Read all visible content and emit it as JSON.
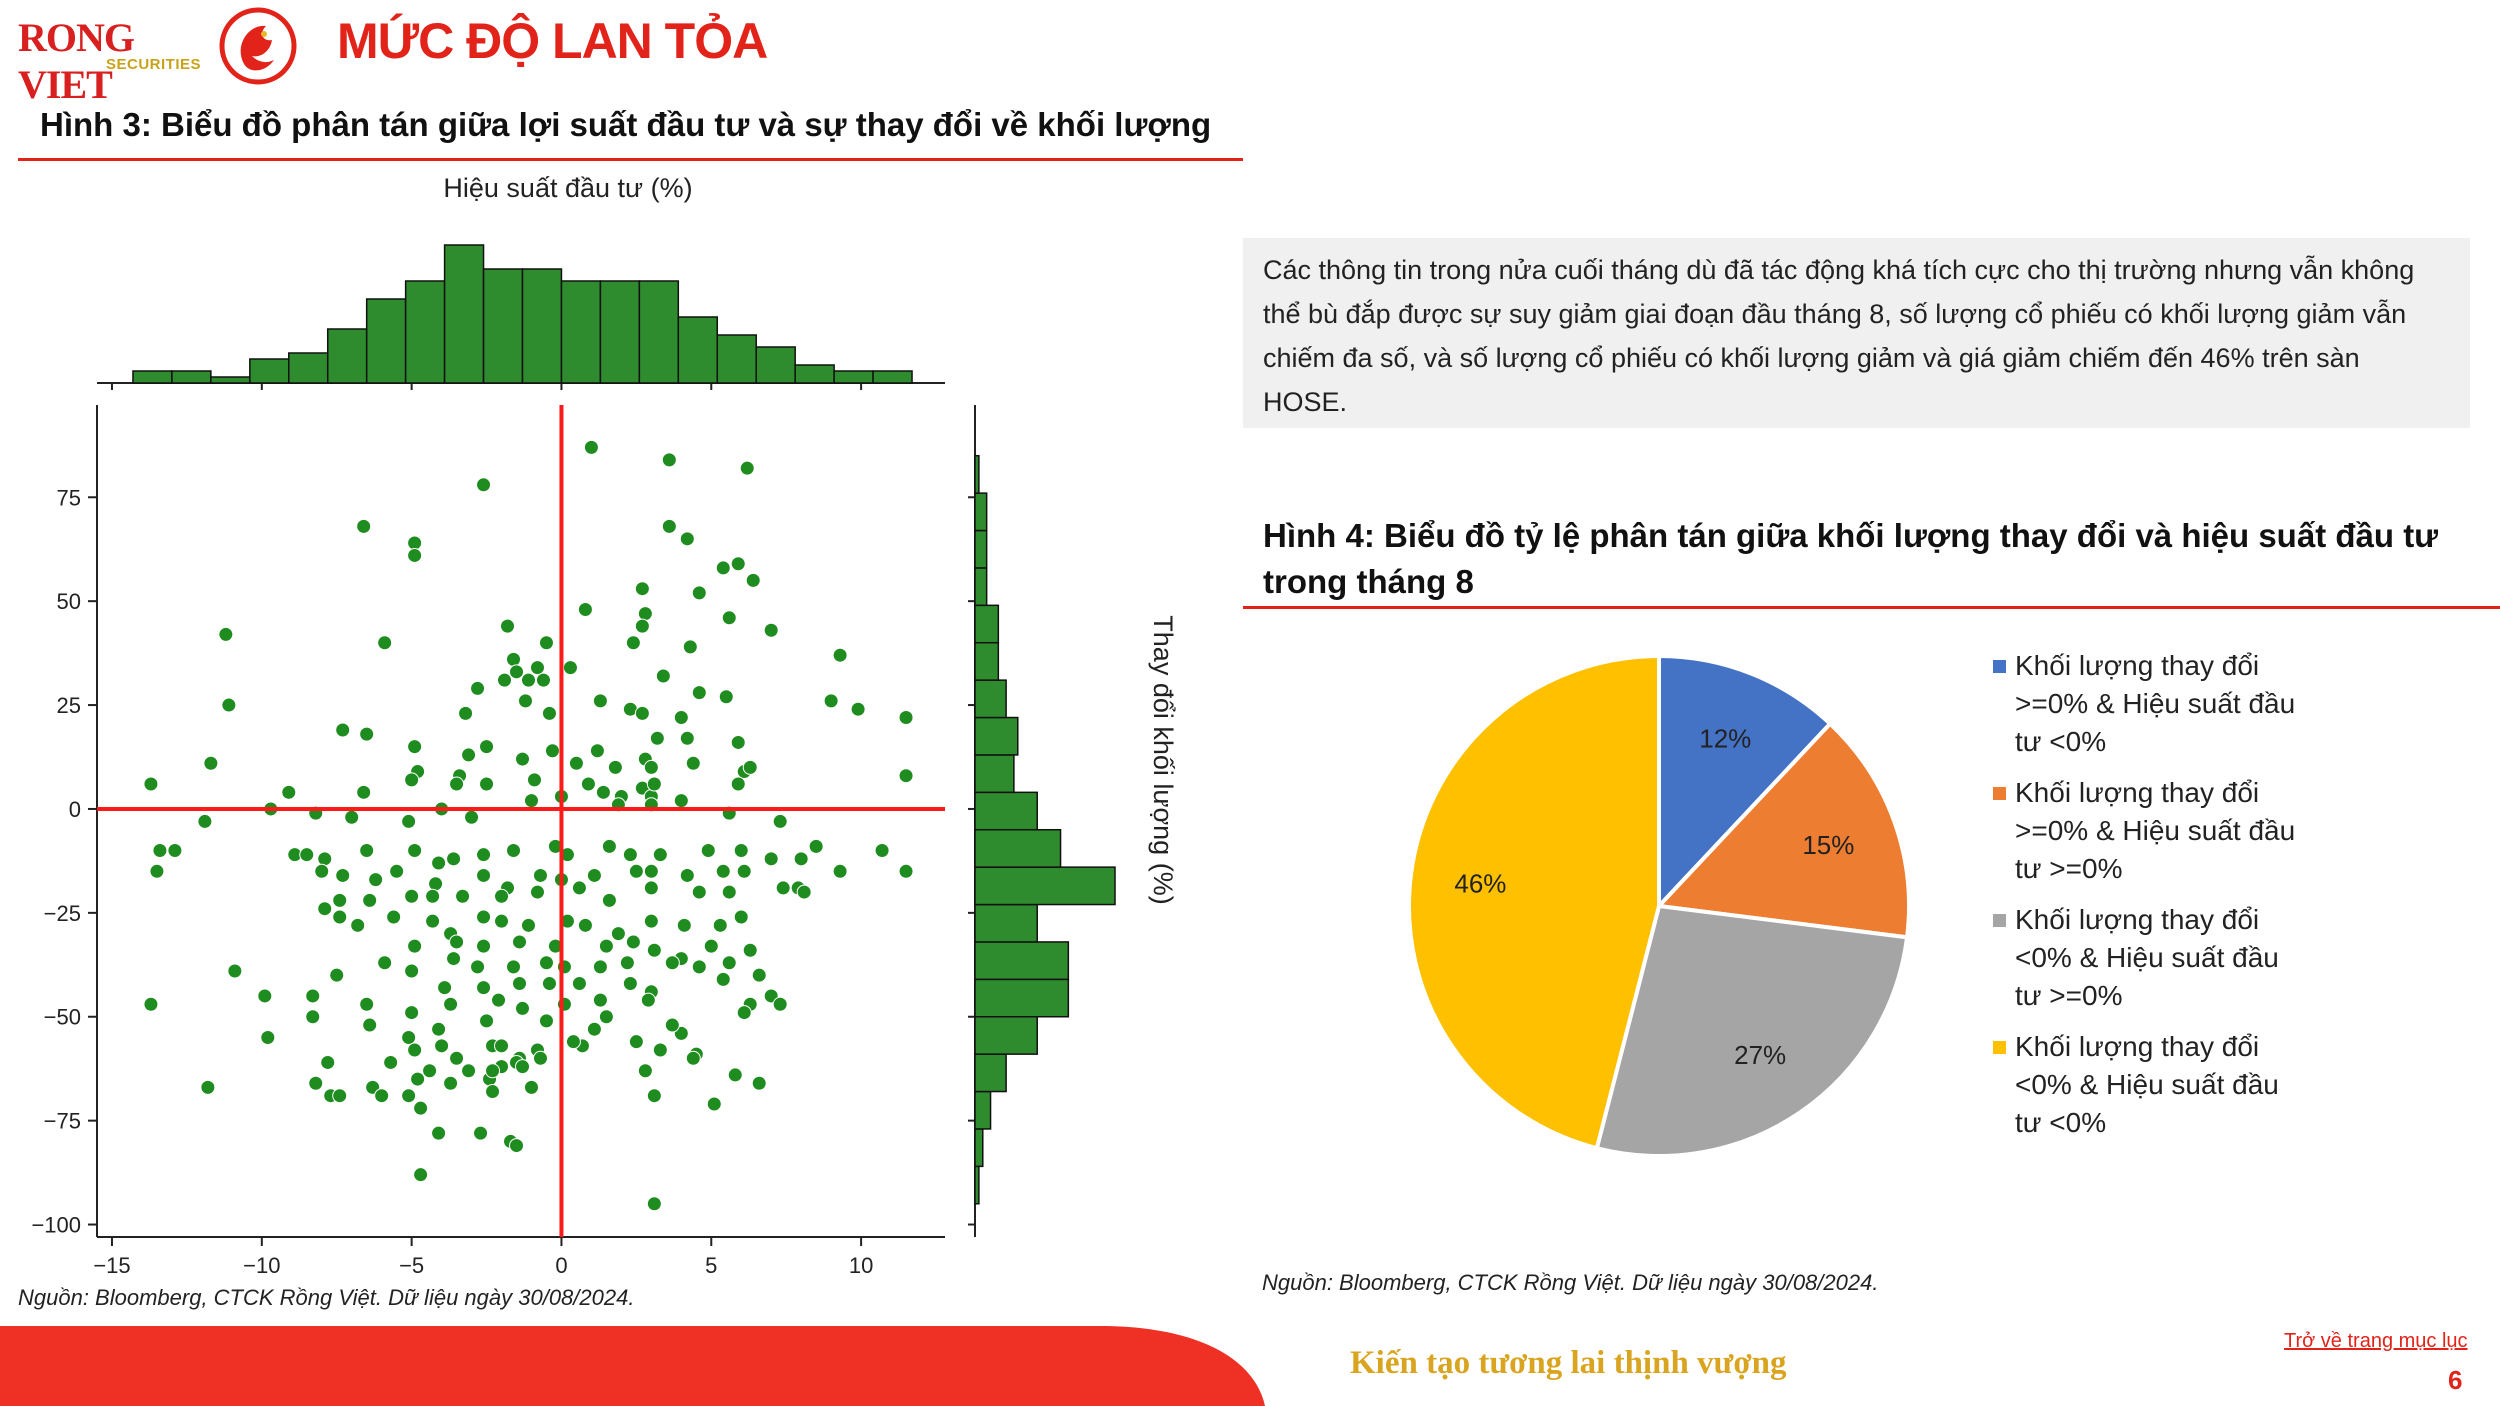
{
  "header": {
    "logo_name": "RONG VIET",
    "logo_sub": "SECURITIES",
    "title": "MỨC ĐỘ LAN TỎA"
  },
  "figure3": {
    "title": "Hình 3: Biểu đồ phân tán giữa lợi suất đầu tư và sự thay đổi về khối lượng",
    "source": "Nguồn: Bloomberg, CTCK Rồng Việt. Dữ liệu ngày 30/08/2024."
  },
  "info_text": "Các thông tin trong nửa cuối tháng dù đã tác động khá tích cực cho thị trường nhưng vẫn không thể bù đắp được sự suy giảm giai đoạn đầu tháng 8, số lượng cổ phiếu có khối lượng giảm vẫn chiếm đa số, và số lượng cổ phiếu có khối lượng giảm và giá giảm chiếm đến 46% trên sàn HOSE.",
  "figure4": {
    "title": "Hình 4: Biểu đồ tỷ lệ phân tán giữa khối lượng thay đổi và hiệu suất đầu tư trong tháng 8",
    "source": "Nguồn: Bloomberg, CTCK Rồng Việt. Dữ liệu ngày 30/08/2024."
  },
  "footer": {
    "slogan": "Kiến tạo tương lai thịnh vượng",
    "back_link": "Trở về trang mục lục",
    "page_number": "6"
  },
  "chart_data": [
    {
      "type": "scatter",
      "title": "",
      "xlabel": "Hiệu suất đầu tư (%)",
      "ylabel": "Thay đổi khối lượng (%)",
      "xlim": [
        -15.5,
        12.8
      ],
      "ylim": [
        -103,
        96
      ],
      "xticks": [
        -15,
        -10,
        -5,
        0,
        5,
        10
      ],
      "yticks": [
        75,
        50,
        25,
        0,
        -25,
        -50,
        -75,
        -100
      ],
      "reference_lines": {
        "x": 0,
        "y": 0,
        "color": "#ff1a1a"
      },
      "point_color": "#1e8c1e",
      "points": [
        [
          1.0,
          87
        ],
        [
          -2.6,
          78
        ],
        [
          3.6,
          84
        ],
        [
          6.2,
          82
        ],
        [
          -6.6,
          68
        ],
        [
          -4.9,
          64
        ],
        [
          -4.9,
          61
        ],
        [
          3.6,
          68
        ],
        [
          4.2,
          65
        ],
        [
          5.9,
          59
        ],
        [
          5.4,
          58
        ],
        [
          6.4,
          55
        ],
        [
          2.7,
          53
        ],
        [
          4.6,
          52
        ],
        [
          0.8,
          48
        ],
        [
          2.8,
          47
        ],
        [
          5.6,
          46
        ],
        [
          -11.2,
          42
        ],
        [
          -1.8,
          44
        ],
        [
          2.7,
          44
        ],
        [
          -5.9,
          40
        ],
        [
          -0.5,
          40
        ],
        [
          2.4,
          40
        ],
        [
          4.3,
          39
        ],
        [
          7.0,
          43
        ],
        [
          -1.6,
          36
        ],
        [
          -1.5,
          33
        ],
        [
          -0.8,
          34
        ],
        [
          0.3,
          34
        ],
        [
          -1.9,
          31
        ],
        [
          -1.1,
          31
        ],
        [
          -2.8,
          29
        ],
        [
          -0.6,
          31
        ],
        [
          3.4,
          32
        ],
        [
          4.6,
          28
        ],
        [
          -11.1,
          25
        ],
        [
          -1.2,
          26
        ],
        [
          1.3,
          26
        ],
        [
          2.3,
          24
        ],
        [
          5.5,
          27
        ],
        [
          9.0,
          26
        ],
        [
          9.3,
          37
        ],
        [
          9.9,
          24
        ],
        [
          11.5,
          22
        ],
        [
          -3.2,
          23
        ],
        [
          -0.4,
          23
        ],
        [
          2.7,
          23
        ],
        [
          4.0,
          22
        ],
        [
          -7.3,
          19
        ],
        [
          -6.5,
          18
        ],
        [
          -4.9,
          15
        ],
        [
          -2.5,
          15
        ],
        [
          -3.1,
          13
        ],
        [
          -0.3,
          14
        ],
        [
          1.2,
          14
        ],
        [
          3.2,
          17
        ],
        [
          2.8,
          12
        ],
        [
          4.2,
          17
        ],
        [
          5.9,
          16
        ],
        [
          -11.7,
          11
        ],
        [
          -13.7,
          6
        ],
        [
          -4.8,
          9
        ],
        [
          -3.4,
          8
        ],
        [
          -1.3,
          12
        ],
        [
          0.5,
          11
        ],
        [
          1.8,
          10
        ],
        [
          3.0,
          10
        ],
        [
          4.4,
          11
        ],
        [
          6.1,
          9
        ],
        [
          6.3,
          10
        ],
        [
          -9.1,
          4
        ],
        [
          -6.6,
          4
        ],
        [
          -5.0,
          7
        ],
        [
          -3.5,
          6
        ],
        [
          -2.5,
          6
        ],
        [
          -0.9,
          7
        ],
        [
          0.9,
          6
        ],
        [
          1.4,
          4
        ],
        [
          2.0,
          3
        ],
        [
          2.7,
          5
        ],
        [
          3.0,
          3
        ],
        [
          3.1,
          6
        ],
        [
          5.9,
          6
        ],
        [
          11.5,
          8
        ],
        [
          -9.7,
          0
        ],
        [
          -8.2,
          -1
        ],
        [
          -7.0,
          -2
        ],
        [
          -5.1,
          -3
        ],
        [
          -4.0,
          0
        ],
        [
          -3.0,
          -2
        ],
        [
          -1.0,
          2
        ],
        [
          0.0,
          3
        ],
        [
          1.9,
          1
        ],
        [
          3.0,
          1
        ],
        [
          4.0,
          2
        ],
        [
          5.6,
          -1
        ],
        [
          7.3,
          -3
        ],
        [
          -11.9,
          -3
        ],
        [
          -12.9,
          -10
        ],
        [
          -13.4,
          -10
        ],
        [
          -13.5,
          -15
        ],
        [
          -8.9,
          -11
        ],
        [
          -8.5,
          -11
        ],
        [
          -7.9,
          -12
        ],
        [
          -6.5,
          -10
        ],
        [
          -4.9,
          -10
        ],
        [
          -4.1,
          -13
        ],
        [
          -3.6,
          -12
        ],
        [
          -2.6,
          -11
        ],
        [
          -1.6,
          -10
        ],
        [
          -0.2,
          -9
        ],
        [
          0.2,
          -11
        ],
        [
          1.6,
          -9
        ],
        [
          2.3,
          -11
        ],
        [
          3.3,
          -11
        ],
        [
          4.9,
          -10
        ],
        [
          6.0,
          -10
        ],
        [
          8.0,
          -12
        ],
        [
          8.5,
          -9
        ],
        [
          10.7,
          -10
        ],
        [
          -8.0,
          -15
        ],
        [
          -7.3,
          -16
        ],
        [
          -6.2,
          -17
        ],
        [
          -5.5,
          -15
        ],
        [
          -4.2,
          -18
        ],
        [
          -2.6,
          -16
        ],
        [
          -1.8,
          -19
        ],
        [
          -0.7,
          -16
        ],
        [
          0.0,
          -17
        ],
        [
          1.1,
          -16
        ],
        [
          2.5,
          -15
        ],
        [
          3.0,
          -15
        ],
        [
          4.2,
          -16
        ],
        [
          5.4,
          -15
        ],
        [
          6.1,
          -15
        ],
        [
          7.0,
          -12
        ],
        [
          -7.4,
          -22
        ],
        [
          -6.4,
          -22
        ],
        [
          -5.0,
          -21
        ],
        [
          -4.3,
          -21
        ],
        [
          -3.3,
          -21
        ],
        [
          -2.0,
          -21
        ],
        [
          -0.8,
          -20
        ],
        [
          0.6,
          -19
        ],
        [
          1.6,
          -22
        ],
        [
          3.0,
          -19
        ],
        [
          4.6,
          -20
        ],
        [
          5.6,
          -20
        ],
        [
          7.4,
          -19
        ],
        [
          7.9,
          -19
        ],
        [
          8.1,
          -20
        ],
        [
          9.3,
          -15
        ],
        [
          11.5,
          -15
        ],
        [
          -7.9,
          -24
        ],
        [
          -7.4,
          -26
        ],
        [
          -6.8,
          -28
        ],
        [
          -5.6,
          -26
        ],
        [
          -4.3,
          -27
        ],
        [
          -3.7,
          -30
        ],
        [
          -2.6,
          -26
        ],
        [
          -2.0,
          -27
        ],
        [
          -1.1,
          -28
        ],
        [
          0.2,
          -27
        ],
        [
          0.8,
          -28
        ],
        [
          1.9,
          -30
        ],
        [
          3.0,
          -27
        ],
        [
          4.1,
          -28
        ],
        [
          5.3,
          -28
        ],
        [
          6.0,
          -26
        ],
        [
          -4.9,
          -33
        ],
        [
          -3.5,
          -32
        ],
        [
          -2.6,
          -33
        ],
        [
          -1.4,
          -32
        ],
        [
          -0.2,
          -33
        ],
        [
          1.5,
          -33
        ],
        [
          2.4,
          -32
        ],
        [
          3.1,
          -34
        ],
        [
          4.0,
          -36
        ],
        [
          5.0,
          -33
        ],
        [
          5.6,
          -37
        ],
        [
          6.3,
          -34
        ],
        [
          -10.9,
          -39
        ],
        [
          -7.5,
          -40
        ],
        [
          -5.9,
          -37
        ],
        [
          -5.0,
          -39
        ],
        [
          -3.6,
          -36
        ],
        [
          -2.8,
          -38
        ],
        [
          -1.6,
          -38
        ],
        [
          -0.5,
          -37
        ],
        [
          0.1,
          -38
        ],
        [
          1.3,
          -38
        ],
        [
          2.2,
          -37
        ],
        [
          3.7,
          -37
        ],
        [
          4.6,
          -38
        ],
        [
          -3.9,
          -43
        ],
        [
          -2.6,
          -43
        ],
        [
          -1.4,
          -42
        ],
        [
          -0.4,
          -42
        ],
        [
          0.6,
          -42
        ],
        [
          2.3,
          -42
        ],
        [
          3.0,
          -44
        ],
        [
          5.4,
          -41
        ],
        [
          6.6,
          -40
        ],
        [
          -9.9,
          -45
        ],
        [
          -8.3,
          -45
        ],
        [
          -6.5,
          -47
        ],
        [
          -5.0,
          -49
        ],
        [
          -3.7,
          -47
        ],
        [
          -2.1,
          -46
        ],
        [
          -1.3,
          -48
        ],
        [
          0.1,
          -47
        ],
        [
          1.3,
          -46
        ],
        [
          2.9,
          -46
        ],
        [
          6.3,
          -47
        ],
        [
          7.0,
          -45
        ],
        [
          7.3,
          -47
        ],
        [
          -4.1,
          -53
        ],
        [
          -2.5,
          -51
        ],
        [
          -0.5,
          -51
        ],
        [
          1.5,
          -50
        ],
        [
          4.0,
          -54
        ],
        [
          6.1,
          -49
        ],
        [
          -13.7,
          -47
        ],
        [
          -9.8,
          -55
        ],
        [
          -6.4,
          -52
        ],
        [
          -5.1,
          -55
        ],
        [
          -4.0,
          -57
        ],
        [
          -2.3,
          -57
        ],
        [
          -1.4,
          -60
        ],
        [
          0.7,
          -57
        ],
        [
          2.5,
          -56
        ],
        [
          3.3,
          -58
        ],
        [
          3.7,
          -52
        ],
        [
          4.5,
          -59
        ],
        [
          -4.9,
          -58
        ],
        [
          -3.5,
          -60
        ],
        [
          -2.0,
          -57
        ],
        [
          -1.5,
          -61
        ],
        [
          -0.8,
          -58
        ],
        [
          0.4,
          -56
        ],
        [
          1.1,
          -53
        ],
        [
          2.8,
          -63
        ],
        [
          -5.7,
          -61
        ],
        [
          -4.4,
          -63
        ],
        [
          -3.1,
          -63
        ],
        [
          -2.0,
          -62
        ],
        [
          -1.3,
          -62
        ],
        [
          -0.7,
          -60
        ],
        [
          -7.8,
          -61
        ],
        [
          -6.3,
          -67
        ],
        [
          -4.8,
          -65
        ],
        [
          -3.7,
          -66
        ],
        [
          -2.4,
          -65
        ],
        [
          -2.3,
          -63
        ],
        [
          4.4,
          -60
        ],
        [
          5.8,
          -64
        ],
        [
          -11.8,
          -67
        ],
        [
          -8.2,
          -66
        ],
        [
          -7.7,
          -69
        ],
        [
          -7.4,
          -69
        ],
        [
          -6.0,
          -69
        ],
        [
          -5.1,
          -69
        ],
        [
          -4.7,
          -72
        ],
        [
          -2.3,
          -68
        ],
        [
          -1.0,
          -67
        ],
        [
          3.1,
          -69
        ],
        [
          5.1,
          -71
        ],
        [
          6.6,
          -66
        ],
        [
          -4.1,
          -78
        ],
        [
          -2.7,
          -78
        ],
        [
          -1.7,
          -80
        ],
        [
          -1.5,
          -81
        ],
        [
          -4.7,
          -88
        ],
        [
          3.1,
          -95
        ],
        [
          -8.3,
          -50
        ]
      ]
    },
    {
      "type": "bar",
      "title": "",
      "orientation": "vertical",
      "xlabel": "Hiệu suất đầu tư (%)",
      "ylabel": "",
      "bin_edges": [
        -14.3,
        -13.0,
        -11.7,
        -10.4,
        -9.1,
        -7.8,
        -6.5,
        -5.2,
        -3.9,
        -2.6,
        -1.3,
        0.0,
        1.3,
        2.6,
        3.9,
        5.2,
        6.5,
        7.8,
        9.1,
        10.4,
        11.7
      ],
      "counts": [
        2,
        2,
        1,
        4,
        5,
        9,
        14,
        17,
        23,
        19,
        19,
        17,
        17,
        17,
        11,
        8,
        6,
        3,
        2,
        2
      ],
      "color": "#2e8b2e"
    },
    {
      "type": "bar",
      "title": "",
      "orientation": "horizontal",
      "xlabel": "",
      "ylabel": "Thay đổi khối lượng (%)",
      "bin_edges": [
        -95,
        -86,
        -77,
        -68,
        -59,
        -50,
        -41,
        -32,
        -23,
        -14,
        -5,
        4,
        13,
        22,
        31,
        40,
        49,
        58,
        67,
        76,
        85
      ],
      "counts": [
        1,
        2,
        4,
        8,
        16,
        24,
        24,
        16,
        36,
        22,
        16,
        10,
        11,
        8,
        6,
        6,
        3,
        3,
        3,
        1
      ],
      "color": "#2e8b2e"
    },
    {
      "type": "pie",
      "title": "",
      "slices": [
        {
          "label": "Khối lượng thay đổi >=0% & Hiệu suất đầu tư <0%",
          "value": 12,
          "display": "12%",
          "color": "#4472c4"
        },
        {
          "label": "Khối lượng thay đổi >=0% & Hiệu suất đầu tư >=0%",
          "value": 15,
          "display": "15%",
          "color": "#ed7d31"
        },
        {
          "label": "Khối lượng thay đổi <0% & Hiệu suất đầu tư >=0%",
          "value": 27,
          "display": "27%",
          "color": "#a5a5a5"
        },
        {
          "label": "Khối lượng thay đổi <0% & Hiệu suất đầu tư <0%",
          "value": 46,
          "display": "46%",
          "color": "#ffc000"
        }
      ],
      "legend_position": "right",
      "legend_lines": [
        [
          "Khối lượng thay đổi",
          ">=0% & Hiệu suất đầu",
          "tư <0%"
        ],
        [
          "Khối lượng thay đổi",
          ">=0% & Hiệu suất đầu",
          "tư >=0%"
        ],
        [
          "Khối lượng thay đổi",
          "<0% & Hiệu suất đầu",
          "tư >=0%"
        ],
        [
          "Khối lượng thay đổi",
          "<0% & Hiệu suất đầu",
          "tư <0%"
        ]
      ]
    }
  ]
}
